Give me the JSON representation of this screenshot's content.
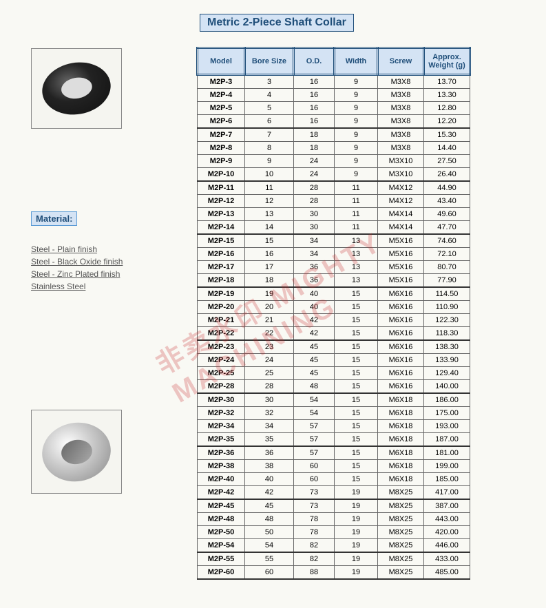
{
  "title": "Metric 2-Piece Shaft Collar",
  "material_label": "Material:",
  "materials": [
    "Steel - Plain finish",
    "Steel - Black Oxide finish",
    "Steel - Zinc Plated finish",
    "Stainless Steel"
  ],
  "columns": [
    "Model",
    "Bore Size",
    "O.D.",
    "Width",
    "Screw",
    "Approx. Weight (g)"
  ],
  "column_widths": [
    "58px",
    "60px",
    "48px",
    "52px",
    "56px",
    "56px"
  ],
  "colors": {
    "header_bg": "#d4e3f4",
    "header_border": "#1f4e79",
    "cell_border": "#666666",
    "page_bg": "#f9f9f4",
    "watermark": "rgba(200,40,40,0.25)"
  },
  "watermark_text": "非卖水印 MIGHTY MACHINING",
  "groups": [
    [
      [
        "M2P-3",
        3,
        16,
        9,
        "M3X8",
        13.7
      ],
      [
        "M2P-4",
        4,
        16,
        9,
        "M3X8",
        13.3
      ],
      [
        "M2P-5",
        5,
        16,
        9,
        "M3X8",
        12.8
      ],
      [
        "M2P-6",
        6,
        16,
        9,
        "M3X8",
        12.2
      ]
    ],
    [
      [
        "M2P-7",
        7,
        18,
        9,
        "M3X8",
        15.3
      ],
      [
        "M2P-8",
        8,
        18,
        9,
        "M3X8",
        14.4
      ],
      [
        "M2P-9",
        9,
        24,
        9,
        "M3X10",
        27.5
      ],
      [
        "M2P-10",
        10,
        24,
        9,
        "M3X10",
        26.4
      ]
    ],
    [
      [
        "M2P-11",
        11,
        28,
        11,
        "M4X12",
        44.9
      ],
      [
        "M2P-12",
        12,
        28,
        11,
        "M4X12",
        43.4
      ],
      [
        "M2P-13",
        13,
        30,
        11,
        "M4X14",
        49.6
      ],
      [
        "M2P-14",
        14,
        30,
        11,
        "M4X14",
        47.7
      ]
    ],
    [
      [
        "M2P-15",
        15,
        34,
        13,
        "M5X16",
        74.6
      ],
      [
        "M2P-16",
        16,
        34,
        13,
        "M5X16",
        72.1
      ],
      [
        "M2P-17",
        17,
        36,
        13,
        "M5X16",
        80.7
      ],
      [
        "M2P-18",
        18,
        36,
        13,
        "M5X16",
        77.9
      ]
    ],
    [
      [
        "M2P-19",
        19,
        40,
        15,
        "M6X16",
        114.5
      ],
      [
        "M2P-20",
        20,
        40,
        15,
        "M6X16",
        110.9
      ],
      [
        "M2P-21",
        21,
        42,
        15,
        "M6X16",
        122.3
      ],
      [
        "M2P-22",
        22,
        42,
        15,
        "M6X16",
        118.3
      ]
    ],
    [
      [
        "M2P-23",
        23,
        45,
        15,
        "M6X16",
        138.3
      ],
      [
        "M2P-24",
        24,
        45,
        15,
        "M6X16",
        133.9
      ],
      [
        "M2P-25",
        25,
        45,
        15,
        "M6X16",
        129.4
      ],
      [
        "M2P-28",
        28,
        48,
        15,
        "M6X16",
        140.0
      ]
    ],
    [
      [
        "M2P-30",
        30,
        54,
        15,
        "M6X18",
        186.0
      ],
      [
        "M2P-32",
        32,
        54,
        15,
        "M6X18",
        175.0
      ],
      [
        "M2P-34",
        34,
        57,
        15,
        "M6X18",
        193.0
      ],
      [
        "M2P-35",
        35,
        57,
        15,
        "M6X18",
        187.0
      ]
    ],
    [
      [
        "M2P-36",
        36,
        57,
        15,
        "M6X18",
        181.0
      ],
      [
        "M2P-38",
        38,
        60,
        15,
        "M6X18",
        199.0
      ],
      [
        "M2P-40",
        40,
        60,
        15,
        "M6X18",
        185.0
      ],
      [
        "M2P-42",
        42,
        73,
        19,
        "M8X25",
        417.0
      ]
    ],
    [
      [
        "M2P-45",
        45,
        73,
        19,
        "M8X25",
        387.0
      ],
      [
        "M2P-48",
        48,
        78,
        19,
        "M8X25",
        443.0
      ],
      [
        "M2P-50",
        50,
        78,
        19,
        "M8X25",
        420.0
      ],
      [
        "M2P-54",
        54,
        82,
        19,
        "M8X25",
        446.0
      ]
    ],
    [
      [
        "M2P-55",
        55,
        82,
        19,
        "M8X25",
        433.0
      ],
      [
        "M2P-60",
        60,
        88,
        19,
        "M8X25",
        485.0
      ]
    ]
  ]
}
